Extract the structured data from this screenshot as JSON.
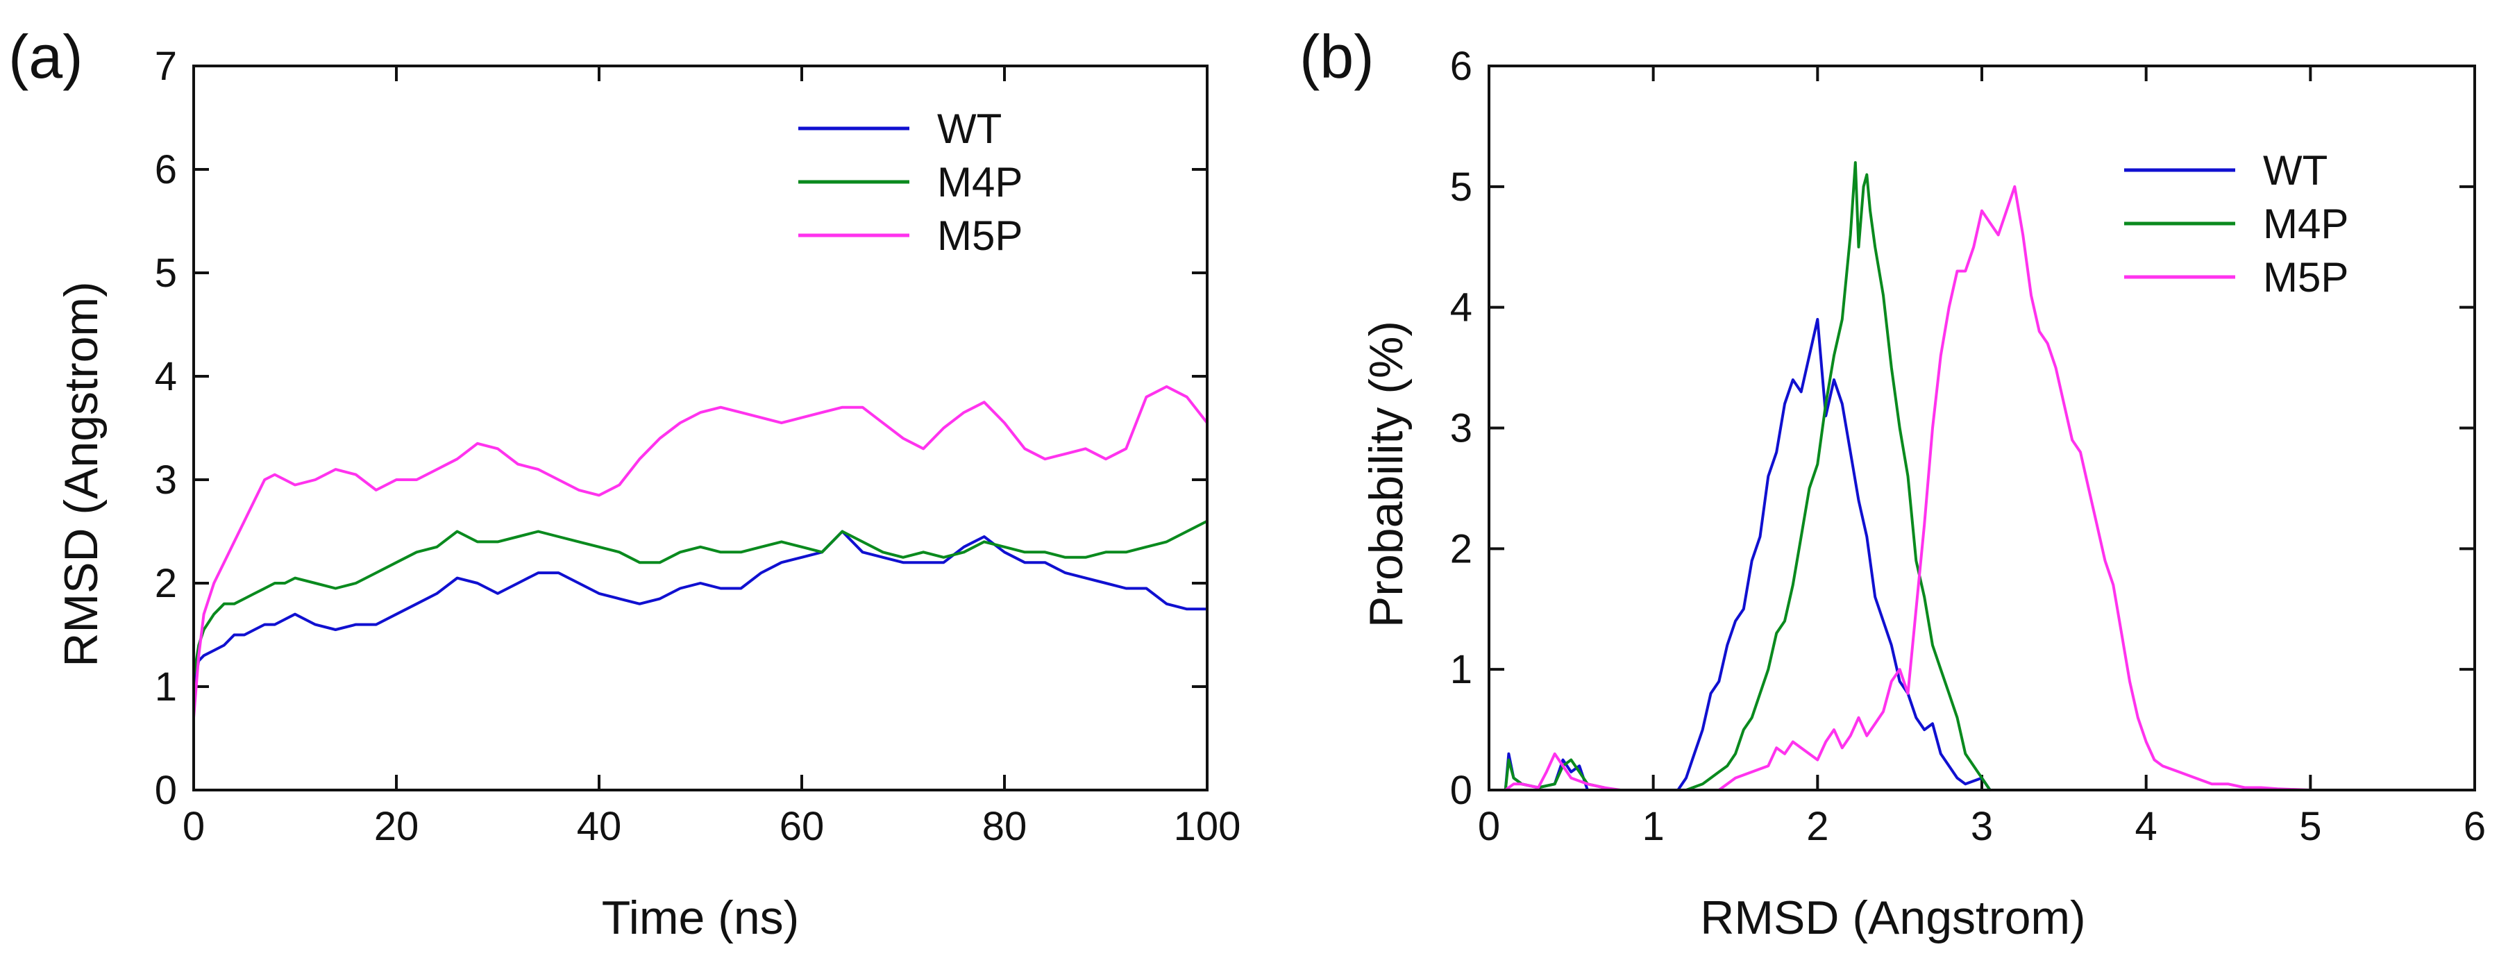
{
  "chart_data": [
    {
      "panel_label": "(a)",
      "type": "line",
      "title": "",
      "xlabel": "Time (ns)",
      "ylabel": "RMSD (Angstrom)",
      "xlim": [
        0,
        100
      ],
      "ylim": [
        0,
        7
      ],
      "xticks": [
        0,
        20,
        40,
        60,
        80,
        100
      ],
      "yticks": [
        0,
        1,
        2,
        3,
        4,
        5,
        6,
        7
      ],
      "legend_position": "top-right",
      "series": [
        {
          "name": "WT",
          "color": "#1010d0",
          "x": [
            0,
            0.5,
            1,
            2,
            3,
            4,
            5,
            6,
            7,
            8,
            9,
            10,
            12,
            14,
            16,
            18,
            20,
            22,
            24,
            26,
            28,
            30,
            32,
            34,
            36,
            38,
            40,
            42,
            44,
            46,
            48,
            50,
            52,
            54,
            56,
            58,
            60,
            62,
            64,
            66,
            68,
            70,
            72,
            74,
            76,
            78,
            80,
            82,
            84,
            86,
            88,
            90,
            92,
            94,
            96,
            98,
            100
          ],
          "y": [
            1.0,
            1.25,
            1.3,
            1.35,
            1.4,
            1.5,
            1.5,
            1.55,
            1.6,
            1.6,
            1.65,
            1.7,
            1.6,
            1.55,
            1.6,
            1.6,
            1.7,
            1.8,
            1.9,
            2.05,
            2.0,
            1.9,
            2.0,
            2.1,
            2.1,
            2.0,
            1.9,
            1.85,
            1.8,
            1.85,
            1.95,
            2.0,
            1.95,
            1.95,
            2.1,
            2.2,
            2.25,
            2.3,
            2.5,
            2.3,
            2.25,
            2.2,
            2.2,
            2.2,
            2.35,
            2.45,
            2.3,
            2.2,
            2.2,
            2.1,
            2.05,
            2.0,
            1.95,
            1.95,
            1.8,
            1.75,
            1.75
          ]
        },
        {
          "name": "M4P",
          "color": "#0a8a1e",
          "x": [
            0,
            0.5,
            1,
            2,
            3,
            4,
            5,
            6,
            7,
            8,
            9,
            10,
            12,
            14,
            16,
            18,
            20,
            22,
            24,
            26,
            28,
            30,
            32,
            34,
            36,
            38,
            40,
            42,
            44,
            46,
            48,
            50,
            52,
            54,
            56,
            58,
            60,
            62,
            64,
            66,
            68,
            70,
            72,
            74,
            76,
            78,
            80,
            82,
            84,
            86,
            88,
            90,
            92,
            94,
            96,
            98,
            100
          ],
          "y": [
            1.1,
            1.4,
            1.55,
            1.7,
            1.8,
            1.8,
            1.85,
            1.9,
            1.95,
            2.0,
            2.0,
            2.05,
            2.0,
            1.95,
            2.0,
            2.1,
            2.2,
            2.3,
            2.35,
            2.5,
            2.4,
            2.4,
            2.45,
            2.5,
            2.45,
            2.4,
            2.35,
            2.3,
            2.2,
            2.2,
            2.3,
            2.35,
            2.3,
            2.3,
            2.35,
            2.4,
            2.35,
            2.3,
            2.5,
            2.4,
            2.3,
            2.25,
            2.3,
            2.25,
            2.3,
            2.4,
            2.35,
            2.3,
            2.3,
            2.25,
            2.25,
            2.3,
            2.3,
            2.35,
            2.4,
            2.5,
            2.6
          ]
        },
        {
          "name": "M5P",
          "color": "#ff33ee",
          "x": [
            0,
            0.5,
            1,
            2,
            3,
            4,
            5,
            6,
            7,
            8,
            9,
            10,
            12,
            14,
            16,
            18,
            20,
            22,
            24,
            26,
            28,
            30,
            32,
            34,
            36,
            38,
            40,
            42,
            44,
            46,
            48,
            50,
            52,
            54,
            56,
            58,
            60,
            62,
            64,
            66,
            68,
            70,
            72,
            74,
            76,
            78,
            80,
            82,
            84,
            86,
            88,
            90,
            92,
            94,
            96,
            98,
            100
          ],
          "y": [
            0.7,
            1.3,
            1.7,
            2.0,
            2.2,
            2.4,
            2.6,
            2.8,
            3.0,
            3.05,
            3.0,
            2.95,
            3.0,
            3.1,
            3.05,
            2.9,
            3.0,
            3.0,
            3.1,
            3.2,
            3.35,
            3.3,
            3.15,
            3.1,
            3.0,
            2.9,
            2.85,
            2.95,
            3.2,
            3.4,
            3.55,
            3.65,
            3.7,
            3.65,
            3.6,
            3.55,
            3.6,
            3.65,
            3.7,
            3.7,
            3.55,
            3.4,
            3.3,
            3.5,
            3.65,
            3.75,
            3.55,
            3.3,
            3.2,
            3.25,
            3.3,
            3.2,
            3.3,
            3.8,
            3.9,
            3.8,
            3.55
          ]
        }
      ]
    },
    {
      "panel_label": "(b)",
      "type": "line",
      "title": "",
      "xlabel": "RMSD (Angstrom)",
      "ylabel": "Probability (%)",
      "xlim": [
        0,
        6
      ],
      "ylim": [
        0,
        6
      ],
      "xticks": [
        0,
        1,
        2,
        3,
        4,
        5,
        6
      ],
      "yticks": [
        0,
        1,
        2,
        3,
        4,
        5,
        6
      ],
      "legend_position": "top-right",
      "series": [
        {
          "name": "WT",
          "color": "#1010d0",
          "x": [
            0.1,
            0.12,
            0.15,
            0.2,
            0.3,
            0.4,
            0.45,
            0.5,
            0.55,
            0.6,
            1.0,
            1.15,
            1.2,
            1.25,
            1.3,
            1.35,
            1.4,
            1.45,
            1.5,
            1.55,
            1.6,
            1.65,
            1.7,
            1.75,
            1.8,
            1.85,
            1.9,
            1.95,
            2.0,
            2.05,
            2.1,
            2.15,
            2.2,
            2.25,
            2.3,
            2.35,
            2.4,
            2.45,
            2.5,
            2.55,
            2.6,
            2.65,
            2.7,
            2.75,
            2.8,
            2.85,
            2.9,
            3.0,
            3.05
          ],
          "y": [
            0.0,
            0.3,
            0.1,
            0.05,
            0.02,
            0.05,
            0.25,
            0.15,
            0.2,
            0.0,
            0.0,
            0.0,
            0.1,
            0.3,
            0.5,
            0.8,
            0.9,
            1.2,
            1.4,
            1.5,
            1.9,
            2.1,
            2.6,
            2.8,
            3.2,
            3.4,
            3.3,
            3.6,
            3.9,
            3.1,
            3.4,
            3.2,
            2.8,
            2.4,
            2.1,
            1.6,
            1.4,
            1.2,
            0.9,
            0.8,
            0.6,
            0.5,
            0.55,
            0.3,
            0.2,
            0.1,
            0.05,
            0.1,
            0.0
          ]
        },
        {
          "name": "M4P",
          "color": "#0a8a1e",
          "x": [
            0.1,
            0.12,
            0.15,
            0.2,
            0.3,
            0.4,
            0.45,
            0.5,
            0.55,
            0.6,
            0.7,
            0.75,
            1.2,
            1.3,
            1.35,
            1.4,
            1.45,
            1.5,
            1.55,
            1.6,
            1.65,
            1.7,
            1.75,
            1.8,
            1.85,
            1.9,
            1.95,
            2.0,
            2.05,
            2.1,
            2.15,
            2.2,
            2.23,
            2.25,
            2.28,
            2.3,
            2.32,
            2.35,
            2.4,
            2.45,
            2.5,
            2.55,
            2.6,
            2.65,
            2.7,
            2.75,
            2.8,
            2.85,
            2.9,
            3.0,
            3.05
          ],
          "y": [
            0.0,
            0.25,
            0.1,
            0.05,
            0.02,
            0.05,
            0.2,
            0.25,
            0.15,
            0.05,
            0.02,
            0.0,
            0.0,
            0.05,
            0.1,
            0.15,
            0.2,
            0.3,
            0.5,
            0.6,
            0.8,
            1.0,
            1.3,
            1.4,
            1.7,
            2.1,
            2.5,
            2.7,
            3.2,
            3.6,
            3.9,
            4.6,
            5.2,
            4.5,
            5.0,
            5.1,
            4.8,
            4.5,
            4.1,
            3.5,
            3.0,
            2.6,
            1.9,
            1.6,
            1.2,
            1.0,
            0.8,
            0.6,
            0.3,
            0.1,
            0.0
          ]
        },
        {
          "name": "M5P",
          "color": "#ff33ee",
          "x": [
            0.1,
            0.15,
            0.2,
            0.3,
            0.35,
            0.4,
            0.45,
            0.5,
            0.6,
            0.7,
            0.8,
            1.4,
            1.5,
            1.6,
            1.7,
            1.75,
            1.8,
            1.85,
            1.9,
            2.0,
            2.05,
            2.1,
            2.15,
            2.2,
            2.25,
            2.3,
            2.35,
            2.4,
            2.45,
            2.5,
            2.55,
            2.6,
            2.65,
            2.7,
            2.75,
            2.8,
            2.85,
            2.9,
            2.95,
            3.0,
            3.05,
            3.1,
            3.15,
            3.2,
            3.25,
            3.3,
            3.35,
            3.4,
            3.45,
            3.5,
            3.55,
            3.6,
            3.65,
            3.7,
            3.75,
            3.8,
            3.85,
            3.9,
            3.95,
            4.0,
            4.05,
            4.1,
            4.2,
            4.3,
            4.4,
            4.5,
            4.6,
            4.7,
            4.8,
            5.0
          ],
          "y": [
            0.0,
            0.05,
            0.05,
            0.02,
            0.15,
            0.3,
            0.2,
            0.1,
            0.05,
            0.02,
            0.0,
            0.0,
            0.1,
            0.15,
            0.2,
            0.35,
            0.3,
            0.4,
            0.35,
            0.25,
            0.4,
            0.5,
            0.35,
            0.45,
            0.6,
            0.45,
            0.55,
            0.65,
            0.9,
            1.0,
            0.8,
            1.5,
            2.2,
            3.0,
            3.6,
            4.0,
            4.3,
            4.3,
            4.5,
            4.8,
            4.7,
            4.6,
            4.8,
            5.0,
            4.6,
            4.1,
            3.8,
            3.7,
            3.5,
            3.2,
            2.9,
            2.8,
            2.5,
            2.2,
            1.9,
            1.7,
            1.3,
            0.9,
            0.6,
            0.4,
            0.25,
            0.2,
            0.15,
            0.1,
            0.05,
            0.05,
            0.02,
            0.02,
            0.01,
            0.0
          ]
        }
      ]
    }
  ]
}
